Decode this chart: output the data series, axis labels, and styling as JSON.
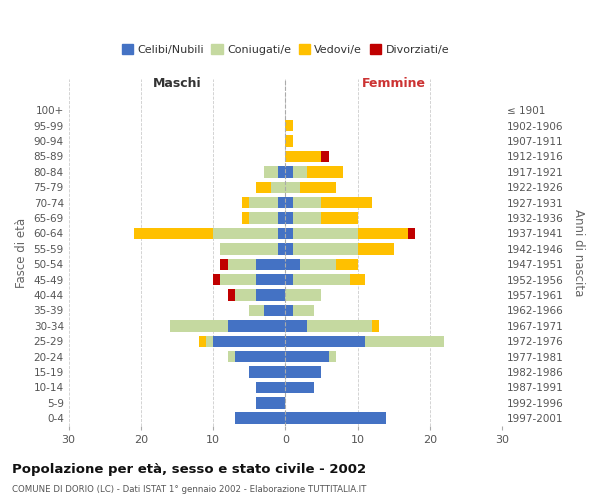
{
  "age_groups": [
    "0-4",
    "5-9",
    "10-14",
    "15-19",
    "20-24",
    "25-29",
    "30-34",
    "35-39",
    "40-44",
    "45-49",
    "50-54",
    "55-59",
    "60-64",
    "65-69",
    "70-74",
    "75-79",
    "80-84",
    "85-89",
    "90-94",
    "95-99",
    "100+"
  ],
  "birth_years": [
    "1997-2001",
    "1992-1996",
    "1987-1991",
    "1982-1986",
    "1977-1981",
    "1972-1976",
    "1967-1971",
    "1962-1966",
    "1957-1961",
    "1952-1956",
    "1947-1951",
    "1942-1946",
    "1937-1941",
    "1932-1936",
    "1927-1931",
    "1922-1926",
    "1917-1921",
    "1912-1916",
    "1907-1911",
    "1902-1906",
    "≤ 1901"
  ],
  "males": {
    "celibi": [
      7,
      4,
      4,
      5,
      7,
      10,
      8,
      3,
      4,
      4,
      4,
      1,
      1,
      1,
      1,
      0,
      1,
      0,
      0,
      0,
      0
    ],
    "coniugati": [
      0,
      0,
      0,
      0,
      1,
      1,
      8,
      2,
      3,
      5,
      4,
      8,
      9,
      4,
      4,
      2,
      2,
      0,
      0,
      0,
      0
    ],
    "vedovi": [
      0,
      0,
      0,
      0,
      0,
      1,
      0,
      0,
      0,
      0,
      0,
      0,
      11,
      1,
      1,
      2,
      0,
      0,
      0,
      0,
      0
    ],
    "divorziati": [
      0,
      0,
      0,
      0,
      0,
      0,
      0,
      0,
      1,
      1,
      1,
      0,
      0,
      0,
      0,
      0,
      0,
      0,
      0,
      0,
      0
    ]
  },
  "females": {
    "nubili": [
      14,
      0,
      4,
      5,
      6,
      11,
      3,
      1,
      0,
      1,
      2,
      1,
      1,
      1,
      1,
      0,
      1,
      0,
      0,
      0,
      0
    ],
    "coniugate": [
      0,
      0,
      0,
      0,
      1,
      11,
      9,
      3,
      5,
      8,
      5,
      9,
      9,
      4,
      4,
      2,
      2,
      0,
      0,
      0,
      0
    ],
    "vedove": [
      0,
      0,
      0,
      0,
      0,
      0,
      1,
      0,
      0,
      2,
      3,
      5,
      7,
      5,
      7,
      5,
      5,
      5,
      1,
      1,
      0
    ],
    "divorziate": [
      0,
      0,
      0,
      0,
      0,
      0,
      0,
      0,
      0,
      0,
      0,
      0,
      1,
      0,
      0,
      0,
      0,
      1,
      0,
      0,
      0
    ]
  },
  "color_celibi": "#4472c4",
  "color_coniugati": "#c5d9a0",
  "color_vedovi": "#ffc000",
  "color_divorziati": "#c00000",
  "xlim": 30,
  "title": "Popolazione per età, sesso e stato civile - 2002",
  "subtitle": "COMUNE DI DORIO (LC) - Dati ISTAT 1° gennaio 2002 - Elaborazione TUTTITALIA.IT",
  "ylabel_left": "Fasce di età",
  "ylabel_right": "Anni di nascita",
  "xlabel_left": "Maschi",
  "xlabel_right": "Femmine",
  "background_color": "#ffffff",
  "grid_color": "#cccccc"
}
